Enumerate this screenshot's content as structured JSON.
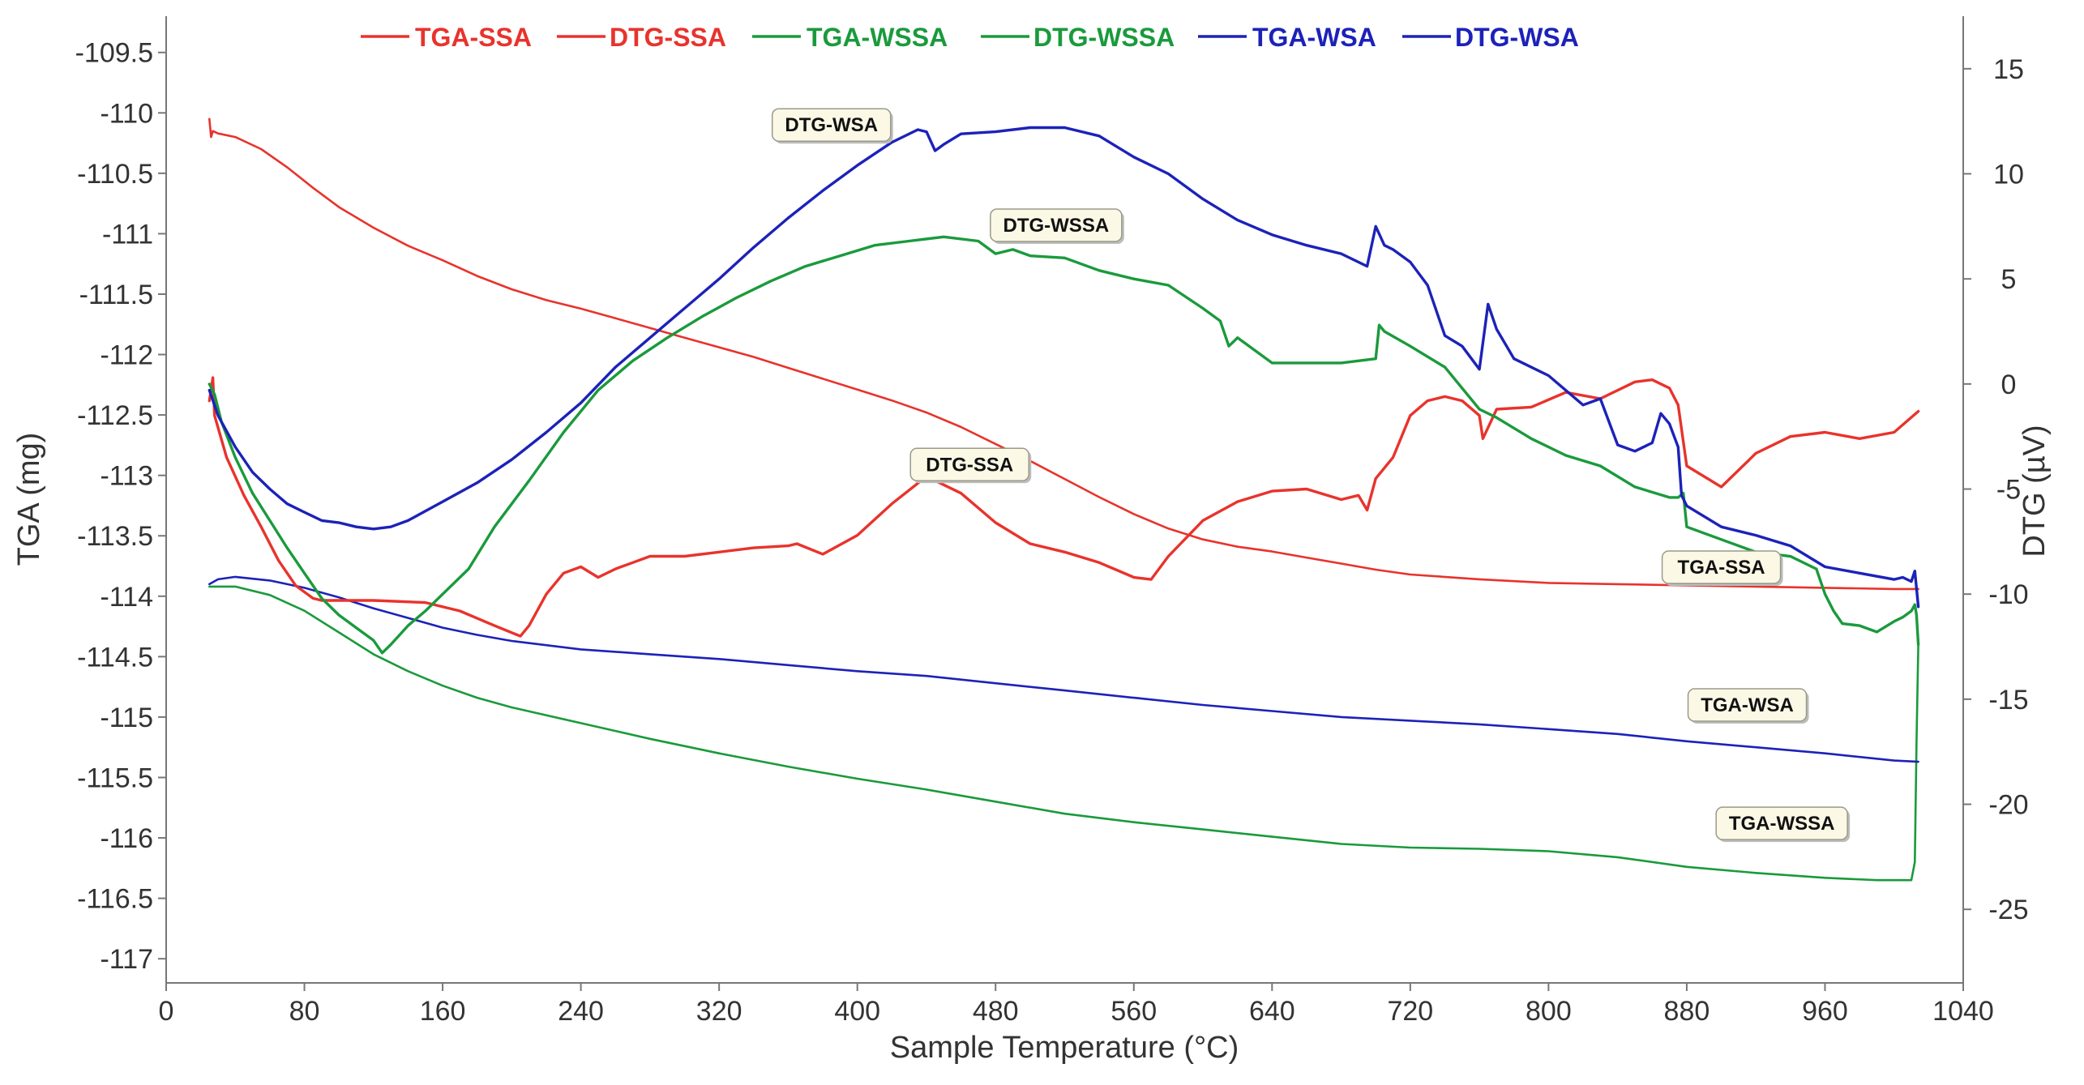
{
  "chart_data": {
    "type": "line",
    "xlabel": "Sample Temperature (°C)",
    "ylabel_left": "TGA (mg)",
    "ylabel_right": "DTG (µV)",
    "xlim": [
      0,
      1040
    ],
    "ylim_left": [
      -117.2,
      -109.2
    ],
    "ylim_right": [
      -28.5,
      17.5
    ],
    "x_ticks": [
      0,
      80,
      160,
      240,
      320,
      400,
      480,
      560,
      640,
      720,
      800,
      880,
      960,
      1040
    ],
    "y_ticks_left": [
      -109.5,
      -110,
      -110.5,
      -111,
      -111.5,
      -112,
      -112.5,
      -113,
      -113.5,
      -114,
      -114.5,
      -115,
      -115.5,
      -116,
      -116.5,
      -117
    ],
    "y_ticks_right": [
      15,
      10,
      5,
      0,
      -5,
      -10,
      -15,
      -20,
      -25
    ],
    "colors": {
      "red": "#e8332c",
      "green": "#1a9a3c",
      "blue": "#1c22b8"
    },
    "legend": [
      {
        "label": "TGA-SSA",
        "color": "#e8332c"
      },
      {
        "label": "DTG-SSA",
        "color": "#e8332c"
      },
      {
        "label": "TGA-WSSA",
        "color": "#1a9a3c"
      },
      {
        "label": "DTG-WSSA",
        "color": "#1a9a3c"
      },
      {
        "label": "TGA-WSA",
        "color": "#1c22b8"
      },
      {
        "label": "DTG-WSA",
        "color": "#1c22b8"
      }
    ],
    "series": [
      {
        "name": "TGA-SSA",
        "axis": "left",
        "color": "#e8332c",
        "width": 2.6,
        "x": [
          25,
          26,
          27,
          30,
          40,
          55,
          70,
          85,
          100,
          120,
          140,
          160,
          180,
          200,
          220,
          240,
          260,
          280,
          300,
          320,
          340,
          360,
          380,
          400,
          420,
          440,
          460,
          480,
          500,
          520,
          540,
          560,
          580,
          600,
          620,
          640,
          660,
          680,
          700,
          720,
          760,
          800,
          840,
          880,
          920,
          960,
          1000,
          1014
        ],
        "y": [
          -110.05,
          -110.2,
          -110.15,
          -110.17,
          -110.2,
          -110.3,
          -110.45,
          -110.62,
          -110.78,
          -110.95,
          -111.1,
          -111.22,
          -111.35,
          -111.46,
          -111.55,
          -111.62,
          -111.7,
          -111.78,
          -111.86,
          -111.94,
          -112.02,
          -112.11,
          -112.2,
          -112.29,
          -112.38,
          -112.48,
          -112.6,
          -112.74,
          -112.88,
          -113.03,
          -113.18,
          -113.32,
          -113.44,
          -113.53,
          -113.59,
          -113.63,
          -113.68,
          -113.73,
          -113.78,
          -113.82,
          -113.86,
          -113.89,
          -113.9,
          -113.91,
          -113.92,
          -113.93,
          -113.94,
          -113.94
        ]
      },
      {
        "name": "TGA-WSSA",
        "axis": "left",
        "color": "#1a9a3c",
        "width": 2.6,
        "x": [
          25,
          40,
          60,
          80,
          100,
          120,
          140,
          160,
          180,
          200,
          240,
          280,
          320,
          360,
          400,
          440,
          480,
          520,
          560,
          600,
          640,
          680,
          720,
          760,
          800,
          840,
          880,
          920,
          960,
          990,
          1010,
          1012,
          1013,
          1014
        ],
        "y": [
          -113.92,
          -113.92,
          -113.99,
          -114.12,
          -114.3,
          -114.48,
          -114.62,
          -114.74,
          -114.84,
          -114.92,
          -115.05,
          -115.18,
          -115.3,
          -115.41,
          -115.51,
          -115.6,
          -115.7,
          -115.8,
          -115.87,
          -115.93,
          -115.99,
          -116.05,
          -116.08,
          -116.09,
          -116.11,
          -116.16,
          -116.24,
          -116.29,
          -116.33,
          -116.35,
          -116.35,
          -116.2,
          -115.2,
          -114.4
        ]
      },
      {
        "name": "TGA-WSA",
        "axis": "left",
        "color": "#1c22b8",
        "width": 2.6,
        "x": [
          25,
          30,
          40,
          60,
          80,
          100,
          120,
          140,
          160,
          180,
          200,
          240,
          280,
          320,
          360,
          400,
          440,
          480,
          520,
          560,
          600,
          640,
          680,
          720,
          760,
          800,
          840,
          880,
          920,
          960,
          1000,
          1014
        ],
        "y": [
          -113.9,
          -113.86,
          -113.84,
          -113.87,
          -113.93,
          -114.01,
          -114.1,
          -114.18,
          -114.26,
          -114.32,
          -114.37,
          -114.44,
          -114.48,
          -114.52,
          -114.57,
          -114.62,
          -114.66,
          -114.72,
          -114.78,
          -114.84,
          -114.9,
          -114.95,
          -115.0,
          -115.03,
          -115.06,
          -115.1,
          -115.14,
          -115.2,
          -115.25,
          -115.3,
          -115.36,
          -115.37
        ]
      },
      {
        "name": "DTG-SSA",
        "axis": "right",
        "color": "#e8332c",
        "width": 3.4,
        "x": [
          25,
          27,
          28,
          35,
          45,
          55,
          65,
          75,
          85,
          90,
          100,
          120,
          150,
          170,
          190,
          205,
          210,
          220,
          230,
          240,
          250,
          260,
          270,
          280,
          300,
          320,
          340,
          360,
          365,
          380,
          400,
          420,
          440,
          460,
          480,
          500,
          520,
          540,
          560,
          570,
          580,
          600,
          620,
          640,
          660,
          680,
          690,
          695,
          700,
          710,
          720,
          730,
          740,
          750,
          760,
          762,
          770,
          790,
          810,
          830,
          850,
          860,
          870,
          875,
          880,
          900,
          920,
          940,
          960,
          980,
          1000,
          1014
        ],
        "y": [
          -0.8,
          0.3,
          -1.5,
          -3.5,
          -5.3,
          -6.8,
          -8.4,
          -9.6,
          -10.2,
          -10.3,
          -10.3,
          -10.3,
          -10.4,
          -10.8,
          -11.5,
          -12.0,
          -11.5,
          -10.0,
          -9.0,
          -8.7,
          -9.2,
          -8.8,
          -8.5,
          -8.2,
          -8.2,
          -8.0,
          -7.8,
          -7.7,
          -7.6,
          -8.1,
          -7.2,
          -5.7,
          -4.4,
          -5.2,
          -6.6,
          -7.6,
          -8.0,
          -8.5,
          -9.2,
          -9.3,
          -8.2,
          -6.5,
          -5.6,
          -5.1,
          -5.0,
          -5.5,
          -5.3,
          -6.0,
          -4.5,
          -3.5,
          -1.5,
          -0.8,
          -0.6,
          -0.8,
          -1.5,
          -2.6,
          -1.2,
          -1.1,
          -0.4,
          -0.7,
          0.1,
          0.2,
          -0.2,
          -1.0,
          -3.9,
          -4.9,
          -3.3,
          -2.5,
          -2.3,
          -2.6,
          -2.3,
          -1.3
        ]
      },
      {
        "name": "DTG-WSSA",
        "axis": "right",
        "color": "#1a9a3c",
        "width": 3.4,
        "x": [
          25,
          28,
          32,
          40,
          50,
          60,
          70,
          80,
          90,
          100,
          110,
          120,
          125,
          130,
          140,
          150,
          160,
          175,
          190,
          210,
          230,
          250,
          270,
          290,
          310,
          330,
          350,
          370,
          390,
          410,
          430,
          450,
          470,
          480,
          490,
          500,
          520,
          540,
          560,
          580,
          600,
          610,
          615,
          620,
          640,
          660,
          680,
          700,
          702,
          705,
          720,
          740,
          760,
          770,
          790,
          810,
          830,
          850,
          870,
          875,
          878,
          880,
          900,
          920,
          940,
          955,
          960,
          965,
          970,
          980,
          990,
          1000,
          1005,
          1010,
          1012,
          1013,
          1014
        ],
        "y": [
          0.0,
          -0.5,
          -1.8,
          -3.5,
          -5.2,
          -6.5,
          -7.8,
          -9.0,
          -10.2,
          -11.0,
          -11.6,
          -12.2,
          -12.8,
          -12.4,
          -11.5,
          -10.8,
          -10.0,
          -8.8,
          -6.8,
          -4.6,
          -2.3,
          -0.3,
          1.1,
          2.2,
          3.2,
          4.1,
          4.9,
          5.6,
          6.1,
          6.6,
          6.8,
          7.0,
          6.8,
          6.2,
          6.4,
          6.1,
          6.0,
          5.4,
          5.0,
          4.7,
          3.6,
          3.0,
          1.8,
          2.2,
          1.0,
          1.0,
          1.0,
          1.2,
          2.8,
          2.5,
          1.8,
          0.8,
          -1.2,
          -1.6,
          -2.6,
          -3.4,
          -3.9,
          -4.9,
          -5.4,
          -5.4,
          -5.2,
          -6.8,
          -7.4,
          -8.0,
          -8.2,
          -8.8,
          -10.0,
          -10.8,
          -11.4,
          -11.5,
          -11.8,
          -11.3,
          -11.1,
          -10.8,
          -10.5,
          -11.0,
          -12.4
        ]
      },
      {
        "name": "DTG-WSA",
        "axis": "right",
        "color": "#1c22b8",
        "width": 3.4,
        "x": [
          25,
          30,
          40,
          50,
          60,
          70,
          80,
          90,
          100,
          110,
          120,
          130,
          140,
          160,
          180,
          200,
          220,
          240,
          260,
          280,
          300,
          320,
          340,
          360,
          380,
          400,
          420,
          435,
          440,
          445,
          450,
          460,
          480,
          500,
          520,
          540,
          560,
          580,
          600,
          620,
          640,
          660,
          680,
          695,
          700,
          705,
          710,
          720,
          730,
          740,
          750,
          760,
          765,
          770,
          780,
          800,
          820,
          830,
          840,
          850,
          860,
          865,
          870,
          875,
          877,
          880,
          900,
          920,
          940,
          960,
          980,
          1000,
          1005,
          1010,
          1012,
          1014
        ],
        "y": [
          -0.3,
          -1.5,
          -3.0,
          -4.2,
          -5.0,
          -5.7,
          -6.1,
          -6.5,
          -6.6,
          -6.8,
          -6.9,
          -6.8,
          -6.5,
          -5.6,
          -4.7,
          -3.6,
          -2.3,
          -0.9,
          0.8,
          2.2,
          3.6,
          5.0,
          6.5,
          7.9,
          9.2,
          10.4,
          11.5,
          12.1,
          12.0,
          11.1,
          11.4,
          11.9,
          12.0,
          12.2,
          12.2,
          11.8,
          10.8,
          10.0,
          8.8,
          7.8,
          7.1,
          6.6,
          6.2,
          5.6,
          7.5,
          6.6,
          6.4,
          5.8,
          4.7,
          2.3,
          1.8,
          0.7,
          3.8,
          2.6,
          1.2,
          0.4,
          -1.0,
          -0.7,
          -2.9,
          -3.2,
          -2.8,
          -1.4,
          -1.9,
          -3.0,
          -5.3,
          -5.8,
          -6.8,
          -7.2,
          -7.7,
          -8.7,
          -9.0,
          -9.3,
          -9.2,
          -9.4,
          -8.9,
          -10.6
        ]
      }
    ],
    "annotations": [
      {
        "text": "DTG-WSA",
        "x": 385,
        "y_left": -110.1
      },
      {
        "text": "DTG-WSSA",
        "x": 515,
        "y_left": -110.93
      },
      {
        "text": "DTG-SSA",
        "x": 465,
        "y_left": -112.91
      },
      {
        "text": "TGA-SSA",
        "x": 900,
        "y_left": -113.76
      },
      {
        "text": "TGA-WSA",
        "x": 915,
        "y_left": -114.9
      },
      {
        "text": "TGA-WSSA",
        "x": 935,
        "y_left": -115.88
      }
    ]
  }
}
